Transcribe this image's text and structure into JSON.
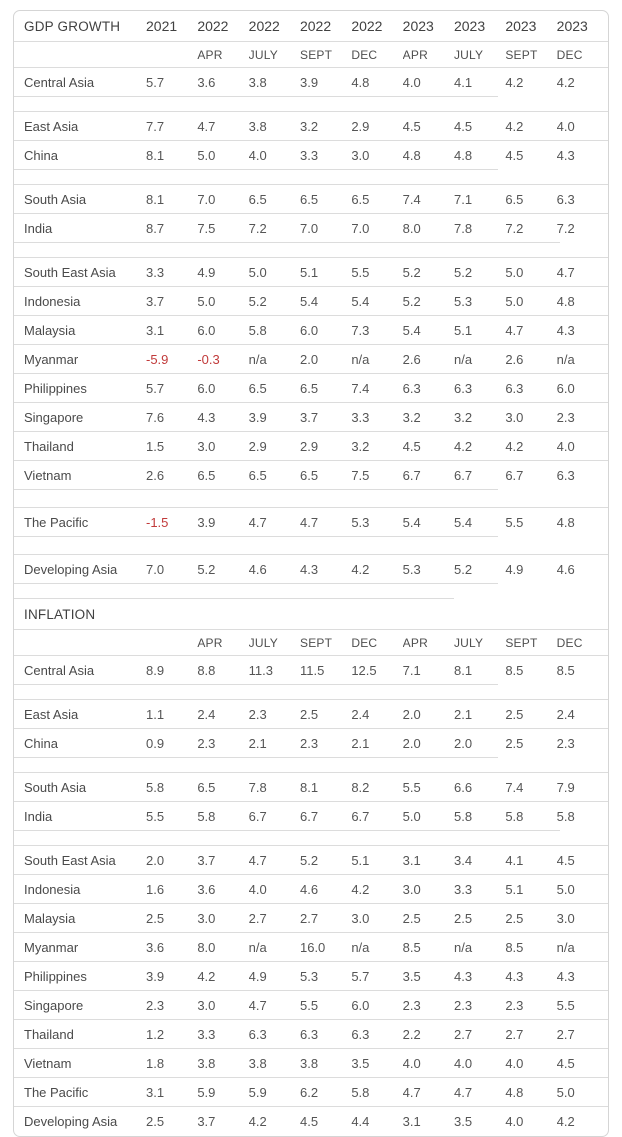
{
  "colors": {
    "background": "#ffffff",
    "card_border": "#d5d5d5",
    "grid_line": "#dcdcdc",
    "text": "#4a4a4a",
    "number_text": "#555555",
    "negative_value": "#c13a3a"
  },
  "chart_data": {
    "type": "table",
    "years": [
      "2021",
      "2022",
      "2022",
      "2022",
      "2022",
      "2023",
      "2023",
      "2023",
      "2023"
    ],
    "periods": [
      "",
      "APR",
      "JULY",
      "SEPT",
      "DEC",
      "APR",
      "JULY",
      "SEPT",
      "DEC"
    ],
    "na_text": "n/a",
    "sections": [
      {
        "title": "GDP GROWTH",
        "rows": [
          {
            "label": "Central Asia",
            "values": [
              "5.7",
              "3.6",
              "3.8",
              "3.9",
              "4.8",
              "4.0",
              "4.1",
              "4.2",
              "4.2"
            ],
            "border": "partial"
          },
          {
            "spacer": true,
            "border": "full"
          },
          {
            "label": "East Asia",
            "values": [
              "7.7",
              "4.7",
              "3.8",
              "3.2",
              "2.9",
              "4.5",
              "4.5",
              "4.2",
              "4.0"
            ],
            "border": "full"
          },
          {
            "label": "China",
            "values": [
              "8.1",
              "5.0",
              "4.0",
              "3.3",
              "3.0",
              "4.8",
              "4.8",
              "4.5",
              "4.3"
            ],
            "border": "partial"
          },
          {
            "spacer": true,
            "border": "full"
          },
          {
            "label": "South Asia",
            "values": [
              "8.1",
              "7.0",
              "6.5",
              "6.5",
              "6.5",
              "7.4",
              "7.1",
              "6.5",
              "6.3"
            ],
            "border": "full"
          },
          {
            "label": "India",
            "values": [
              "8.7",
              "7.5",
              "7.2",
              "7.0",
              "7.0",
              "8.0",
              "7.8",
              "7.2",
              "7.2"
            ],
            "border": "wide"
          },
          {
            "spacer": true,
            "border": "full"
          },
          {
            "label": "South East Asia",
            "values": [
              "3.3",
              "4.9",
              "5.0",
              "5.1",
              "5.5",
              "5.2",
              "5.2",
              "5.0",
              "4.7"
            ],
            "border": "full"
          },
          {
            "label": "Indonesia",
            "values": [
              "3.7",
              "5.0",
              "5.2",
              "5.4",
              "5.4",
              "5.2",
              "5.3",
              "5.0",
              "4.8"
            ],
            "border": "full"
          },
          {
            "label": "Malaysia",
            "values": [
              "3.1",
              "6.0",
              "5.8",
              "6.0",
              "7.3",
              "5.4",
              "5.1",
              "4.7",
              "4.3"
            ],
            "border": "full"
          },
          {
            "label": "Myanmar",
            "values": [
              "-5.9",
              "-0.3",
              "n/a",
              "2.0",
              "n/a",
              "2.6",
              "n/a",
              "2.6",
              "n/a"
            ],
            "border": "full"
          },
          {
            "label": "Philippines",
            "values": [
              "5.7",
              "6.0",
              "6.5",
              "6.5",
              "7.4",
              "6.3",
              "6.3",
              "6.3",
              "6.0"
            ],
            "border": "full"
          },
          {
            "label": "Singapore",
            "values": [
              "7.6",
              "4.3",
              "3.9",
              "3.7",
              "3.3",
              "3.2",
              "3.2",
              "3.0",
              "2.3"
            ],
            "border": "full"
          },
          {
            "label": "Thailand",
            "values": [
              "1.5",
              "3.0",
              "2.9",
              "2.9",
              "3.2",
              "4.5",
              "4.2",
              "4.2",
              "4.0"
            ],
            "border": "full"
          },
          {
            "label": "Vietnam",
            "values": [
              "2.6",
              "6.5",
              "6.5",
              "6.5",
              "7.5",
              "6.7",
              "6.7",
              "6.7",
              "6.3"
            ],
            "border": "partial"
          },
          {
            "spacer": true,
            "border": "full",
            "tall": true
          },
          {
            "label": "The Pacific",
            "values": [
              "-1.5",
              "3.9",
              "4.7",
              "4.7",
              "5.3",
              "5.4",
              "5.4",
              "5.5",
              "4.8"
            ],
            "border": "partial"
          },
          {
            "spacer": true,
            "border": "full",
            "tall": true
          },
          {
            "label": "Developing Asia",
            "values": [
              "7.0",
              "5.2",
              "4.6",
              "4.3",
              "4.2",
              "5.3",
              "5.2",
              "4.9",
              "4.6"
            ],
            "border": "partial"
          },
          {
            "spacer": true,
            "border": "short"
          }
        ]
      },
      {
        "title": "INFLATION",
        "rows": [
          {
            "label": "Central Asia",
            "values": [
              "8.9",
              "8.8",
              "11.3",
              "11.5",
              "12.5",
              "7.1",
              "8.1",
              "8.5",
              "8.5"
            ],
            "border": "partial"
          },
          {
            "spacer": true,
            "border": "full"
          },
          {
            "label": "East Asia",
            "values": [
              "1.1",
              "2.4",
              "2.3",
              "2.5",
              "2.4",
              "2.0",
              "2.1",
              "2.5",
              "2.4"
            ],
            "border": "full"
          },
          {
            "label": "China",
            "values": [
              "0.9",
              "2.3",
              "2.1",
              "2.3",
              "2.1",
              "2.0",
              "2.0",
              "2.5",
              "2.3"
            ],
            "border": "partial"
          },
          {
            "spacer": true,
            "border": "full"
          },
          {
            "label": "South Asia",
            "values": [
              "5.8",
              "6.5",
              "7.8",
              "8.1",
              "8.2",
              "5.5",
              "6.6",
              "7.4",
              "7.9"
            ],
            "border": "full"
          },
          {
            "label": "India",
            "values": [
              "5.5",
              "5.8",
              "6.7",
              "6.7",
              "6.7",
              "5.0",
              "5.8",
              "5.8",
              "5.8"
            ],
            "border": "wide"
          },
          {
            "spacer": true,
            "border": "full"
          },
          {
            "label": "South East Asia",
            "values": [
              "2.0",
              "3.7",
              "4.7",
              "5.2",
              "5.1",
              "3.1",
              "3.4",
              "4.1",
              "4.5"
            ],
            "border": "full"
          },
          {
            "label": "Indonesia",
            "values": [
              "1.6",
              "3.6",
              "4.0",
              "4.6",
              "4.2",
              "3.0",
              "3.3",
              "5.1",
              "5.0"
            ],
            "border": "full"
          },
          {
            "label": "Malaysia",
            "values": [
              "2.5",
              "3.0",
              "2.7",
              "2.7",
              "3.0",
              "2.5",
              "2.5",
              "2.5",
              "3.0"
            ],
            "border": "full"
          },
          {
            "label": "Myanmar",
            "values": [
              "3.6",
              "8.0",
              "n/a",
              "16.0",
              "n/a",
              "8.5",
              "n/a",
              "8.5",
              "n/a"
            ],
            "border": "full"
          },
          {
            "label": "Philippines",
            "values": [
              "3.9",
              "4.2",
              "4.9",
              "5.3",
              "5.7",
              "3.5",
              "4.3",
              "4.3",
              "4.3"
            ],
            "border": "full"
          },
          {
            "label": "Singapore",
            "values": [
              "2.3",
              "3.0",
              "4.7",
              "5.5",
              "6.0",
              "2.3",
              "2.3",
              "2.3",
              "5.5"
            ],
            "border": "full"
          },
          {
            "label": "Thailand",
            "values": [
              "1.2",
              "3.3",
              "6.3",
              "6.3",
              "6.3",
              "2.2",
              "2.7",
              "2.7",
              "2.7"
            ],
            "border": "full"
          },
          {
            "label": "Vietnam",
            "values": [
              "1.8",
              "3.8",
              "3.8",
              "3.8",
              "3.5",
              "4.0",
              "4.0",
              "4.0",
              "4.5"
            ],
            "border": "full"
          },
          {
            "label": "The Pacific",
            "values": [
              "3.1",
              "5.9",
              "5.9",
              "6.2",
              "5.8",
              "4.7",
              "4.7",
              "4.8",
              "5.0"
            ],
            "border": "full"
          },
          {
            "label": "Developing Asia",
            "values": [
              "2.5",
              "3.7",
              "4.2",
              "4.5",
              "4.4",
              "3.1",
              "3.5",
              "4.0",
              "4.2"
            ],
            "border": "none"
          }
        ]
      }
    ]
  }
}
